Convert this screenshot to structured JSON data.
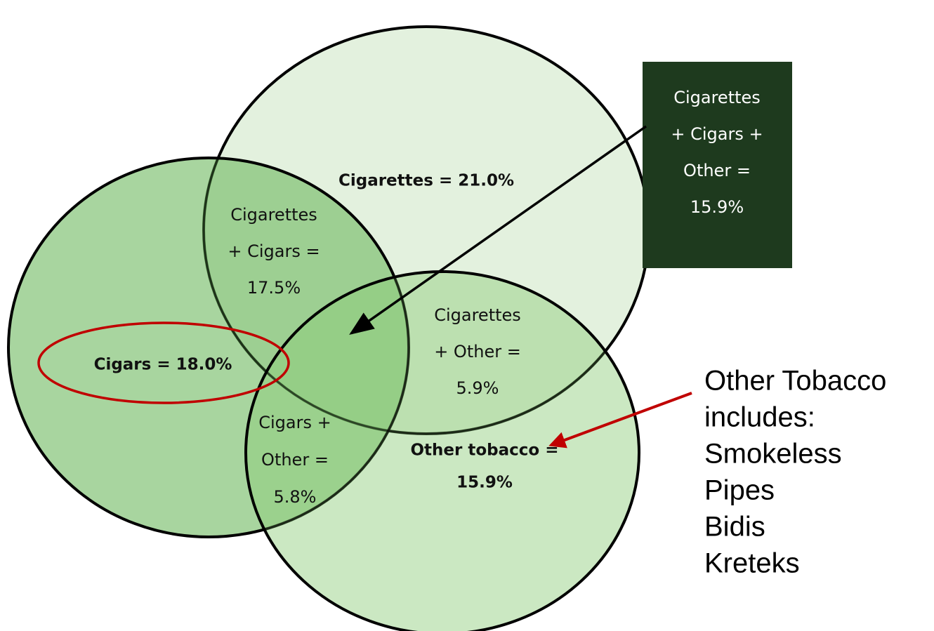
{
  "regions": [
    {
      "lines": [
        "Cigarettes = 21.0%"
      ]
    },
    {
      "lines": [
        "Cigarettes",
        "+ Cigars =",
        "17.5%"
      ]
    },
    {
      "lines": [
        "Cigars = 18.0%"
      ]
    },
    {
      "lines": [
        "Cigarettes",
        "+ Other =",
        "5.9%"
      ]
    },
    {
      "lines": [
        "Cigars +",
        "Other =",
        "5.8%"
      ]
    },
    {
      "lines": [
        "Other tobacco =",
        "15.9%"
      ]
    }
  ],
  "box": {
    "lines": [
      "Cigarettes",
      "+ Cigars +",
      "Other =",
      "15.9%"
    ]
  },
  "note": {
    "lines": [
      "Other Tobacco",
      "includes:",
      "Smokeless",
      "Pipes",
      "Bidis",
      "Kreteks"
    ]
  }
}
